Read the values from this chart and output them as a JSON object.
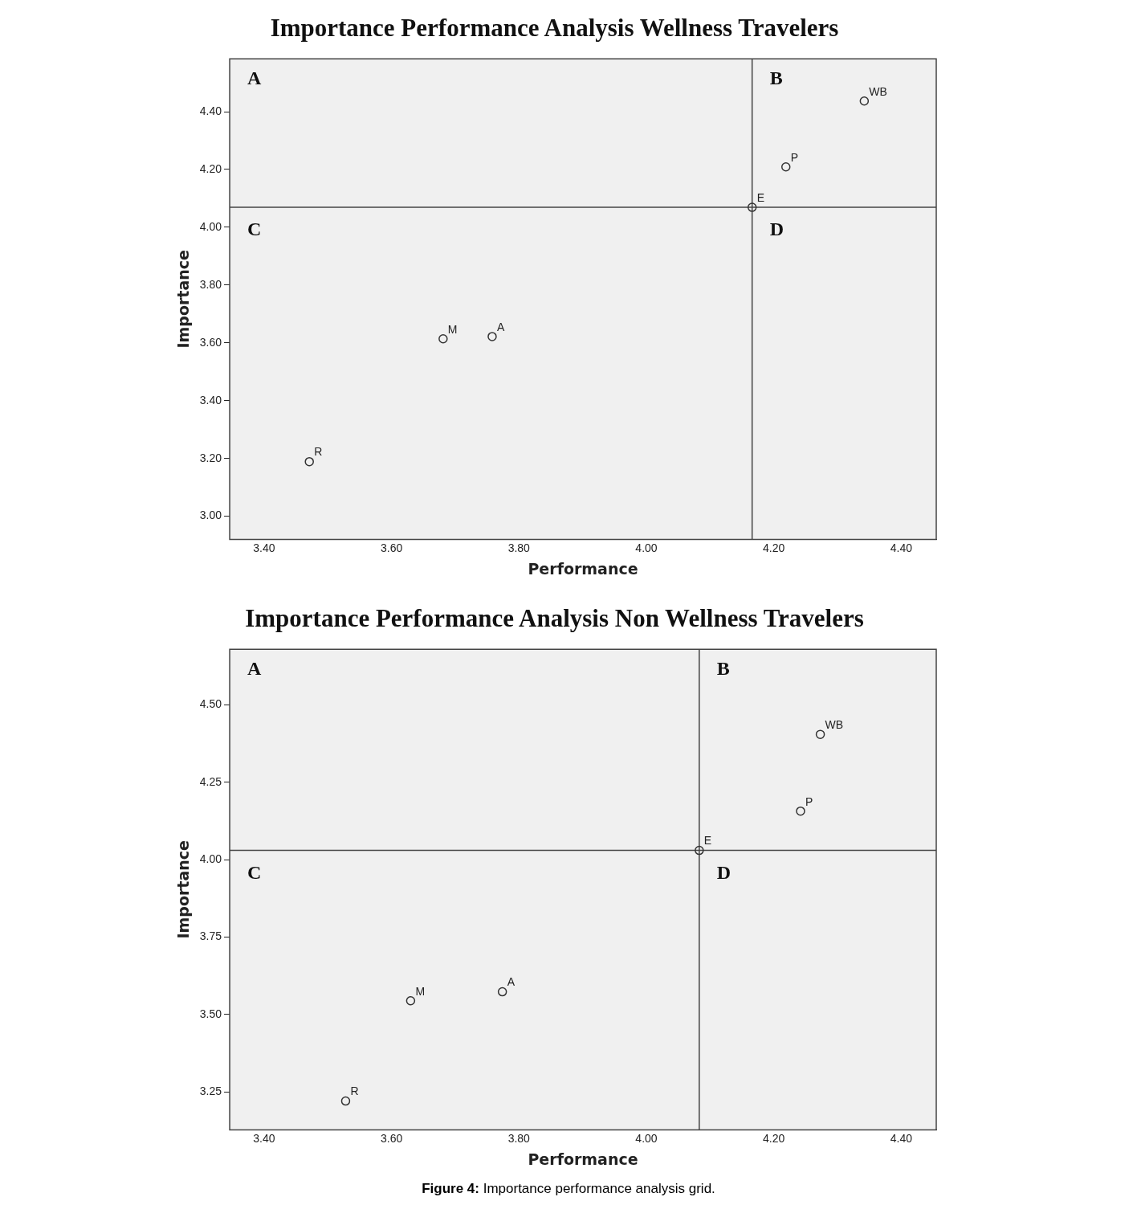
{
  "chart_data": [
    {
      "type": "scatter",
      "title": "Importance Performance Analysis Wellness Travelers",
      "xlabel": "Performance",
      "ylabel": "Importance",
      "annotations": [
        "A",
        "B",
        "C",
        "D"
      ],
      "marker": "circle",
      "legend": false,
      "xlim": [
        3.346,
        4.455
      ],
      "xticks": [
        {
          "value": 3.4,
          "label": "3.40"
        },
        {
          "value": 3.6,
          "label": "3.60"
        },
        {
          "value": 3.8,
          "label": "3.80"
        },
        {
          "value": 4.0,
          "label": "4.00"
        },
        {
          "value": 4.2,
          "label": "4.20"
        },
        {
          "value": 4.4,
          "label": "4.40"
        }
      ],
      "ylim": [
        2.92,
        4.583
      ],
      "yticks": [
        {
          "value": 3.0,
          "label": "3.00"
        },
        {
          "value": 3.2,
          "label": "3.20"
        },
        {
          "value": 3.4,
          "label": "3.40"
        },
        {
          "value": 3.6,
          "label": "3.60"
        },
        {
          "value": 3.8,
          "label": "3.80"
        },
        {
          "value": 4.0,
          "label": "4.00"
        },
        {
          "value": 4.2,
          "label": "4.20"
        },
        {
          "value": 4.4,
          "label": "4.40"
        }
      ],
      "ref_lines": [
        {
          "axis": "x",
          "value": 4.166
        },
        {
          "axis": "y",
          "value": 4.069
        }
      ],
      "series": [
        {
          "name": "WB",
          "color": "#333333",
          "x": [
            4.342
          ],
          "values": [
            4.437
          ]
        },
        {
          "name": "P",
          "color": "#333333",
          "x": [
            4.219
          ],
          "values": [
            4.209
          ]
        },
        {
          "name": "E",
          "color": "#333333",
          "x": [
            4.166
          ],
          "values": [
            4.069
          ]
        },
        {
          "name": "M",
          "color": "#333333",
          "x": [
            3.681
          ],
          "values": [
            3.614
          ]
        },
        {
          "name": "A",
          "color": "#333333",
          "x": [
            3.758
          ],
          "values": [
            3.622
          ]
        },
        {
          "name": "R",
          "color": "#333333",
          "x": [
            3.471
          ],
          "values": [
            3.189
          ]
        }
      ]
    },
    {
      "type": "scatter",
      "title": "Importance Performance Analysis Non Wellness Travelers",
      "xlabel": "Performance",
      "ylabel": "Importance",
      "annotations": [
        "A",
        "B",
        "C",
        "D",
        "Figure 4: Importance performance analysis grid."
      ],
      "marker": "circle",
      "legend": false,
      "xlim": [
        3.346,
        4.455
      ],
      "xticks": [
        {
          "value": 3.4,
          "label": "3.40"
        },
        {
          "value": 3.6,
          "label": "3.60"
        },
        {
          "value": 3.8,
          "label": "3.80"
        },
        {
          "value": 4.0,
          "label": "4.00"
        },
        {
          "value": 4.2,
          "label": "4.20"
        },
        {
          "value": 4.4,
          "label": "4.40"
        }
      ],
      "ylim": [
        3.127,
        4.68
      ],
      "yticks": [
        {
          "value": 3.25,
          "label": "3.25"
        },
        {
          "value": 3.5,
          "label": "3.50"
        },
        {
          "value": 3.75,
          "label": "3.75"
        },
        {
          "value": 4.0,
          "label": "4.00"
        },
        {
          "value": 4.25,
          "label": "4.25"
        },
        {
          "value": 4.5,
          "label": "4.50"
        }
      ],
      "ref_lines": [
        {
          "axis": "x",
          "value": 4.083
        },
        {
          "axis": "y",
          "value": 4.03
        }
      ],
      "series": [
        {
          "name": "WB",
          "color": "#333333",
          "x": [
            4.273
          ],
          "values": [
            4.405
          ]
        },
        {
          "name": "P",
          "color": "#333333",
          "x": [
            4.242
          ],
          "values": [
            4.157
          ]
        },
        {
          "name": "E",
          "color": "#333333",
          "x": [
            4.083
          ],
          "values": [
            4.03
          ]
        },
        {
          "name": "M",
          "color": "#333333",
          "x": [
            3.63
          ],
          "values": [
            3.544
          ]
        },
        {
          "name": "A",
          "color": "#333333",
          "x": [
            3.774
          ],
          "values": [
            3.573
          ]
        },
        {
          "name": "R",
          "color": "#333333",
          "x": [
            3.528
          ],
          "values": [
            3.22
          ]
        }
      ]
    }
  ]
}
